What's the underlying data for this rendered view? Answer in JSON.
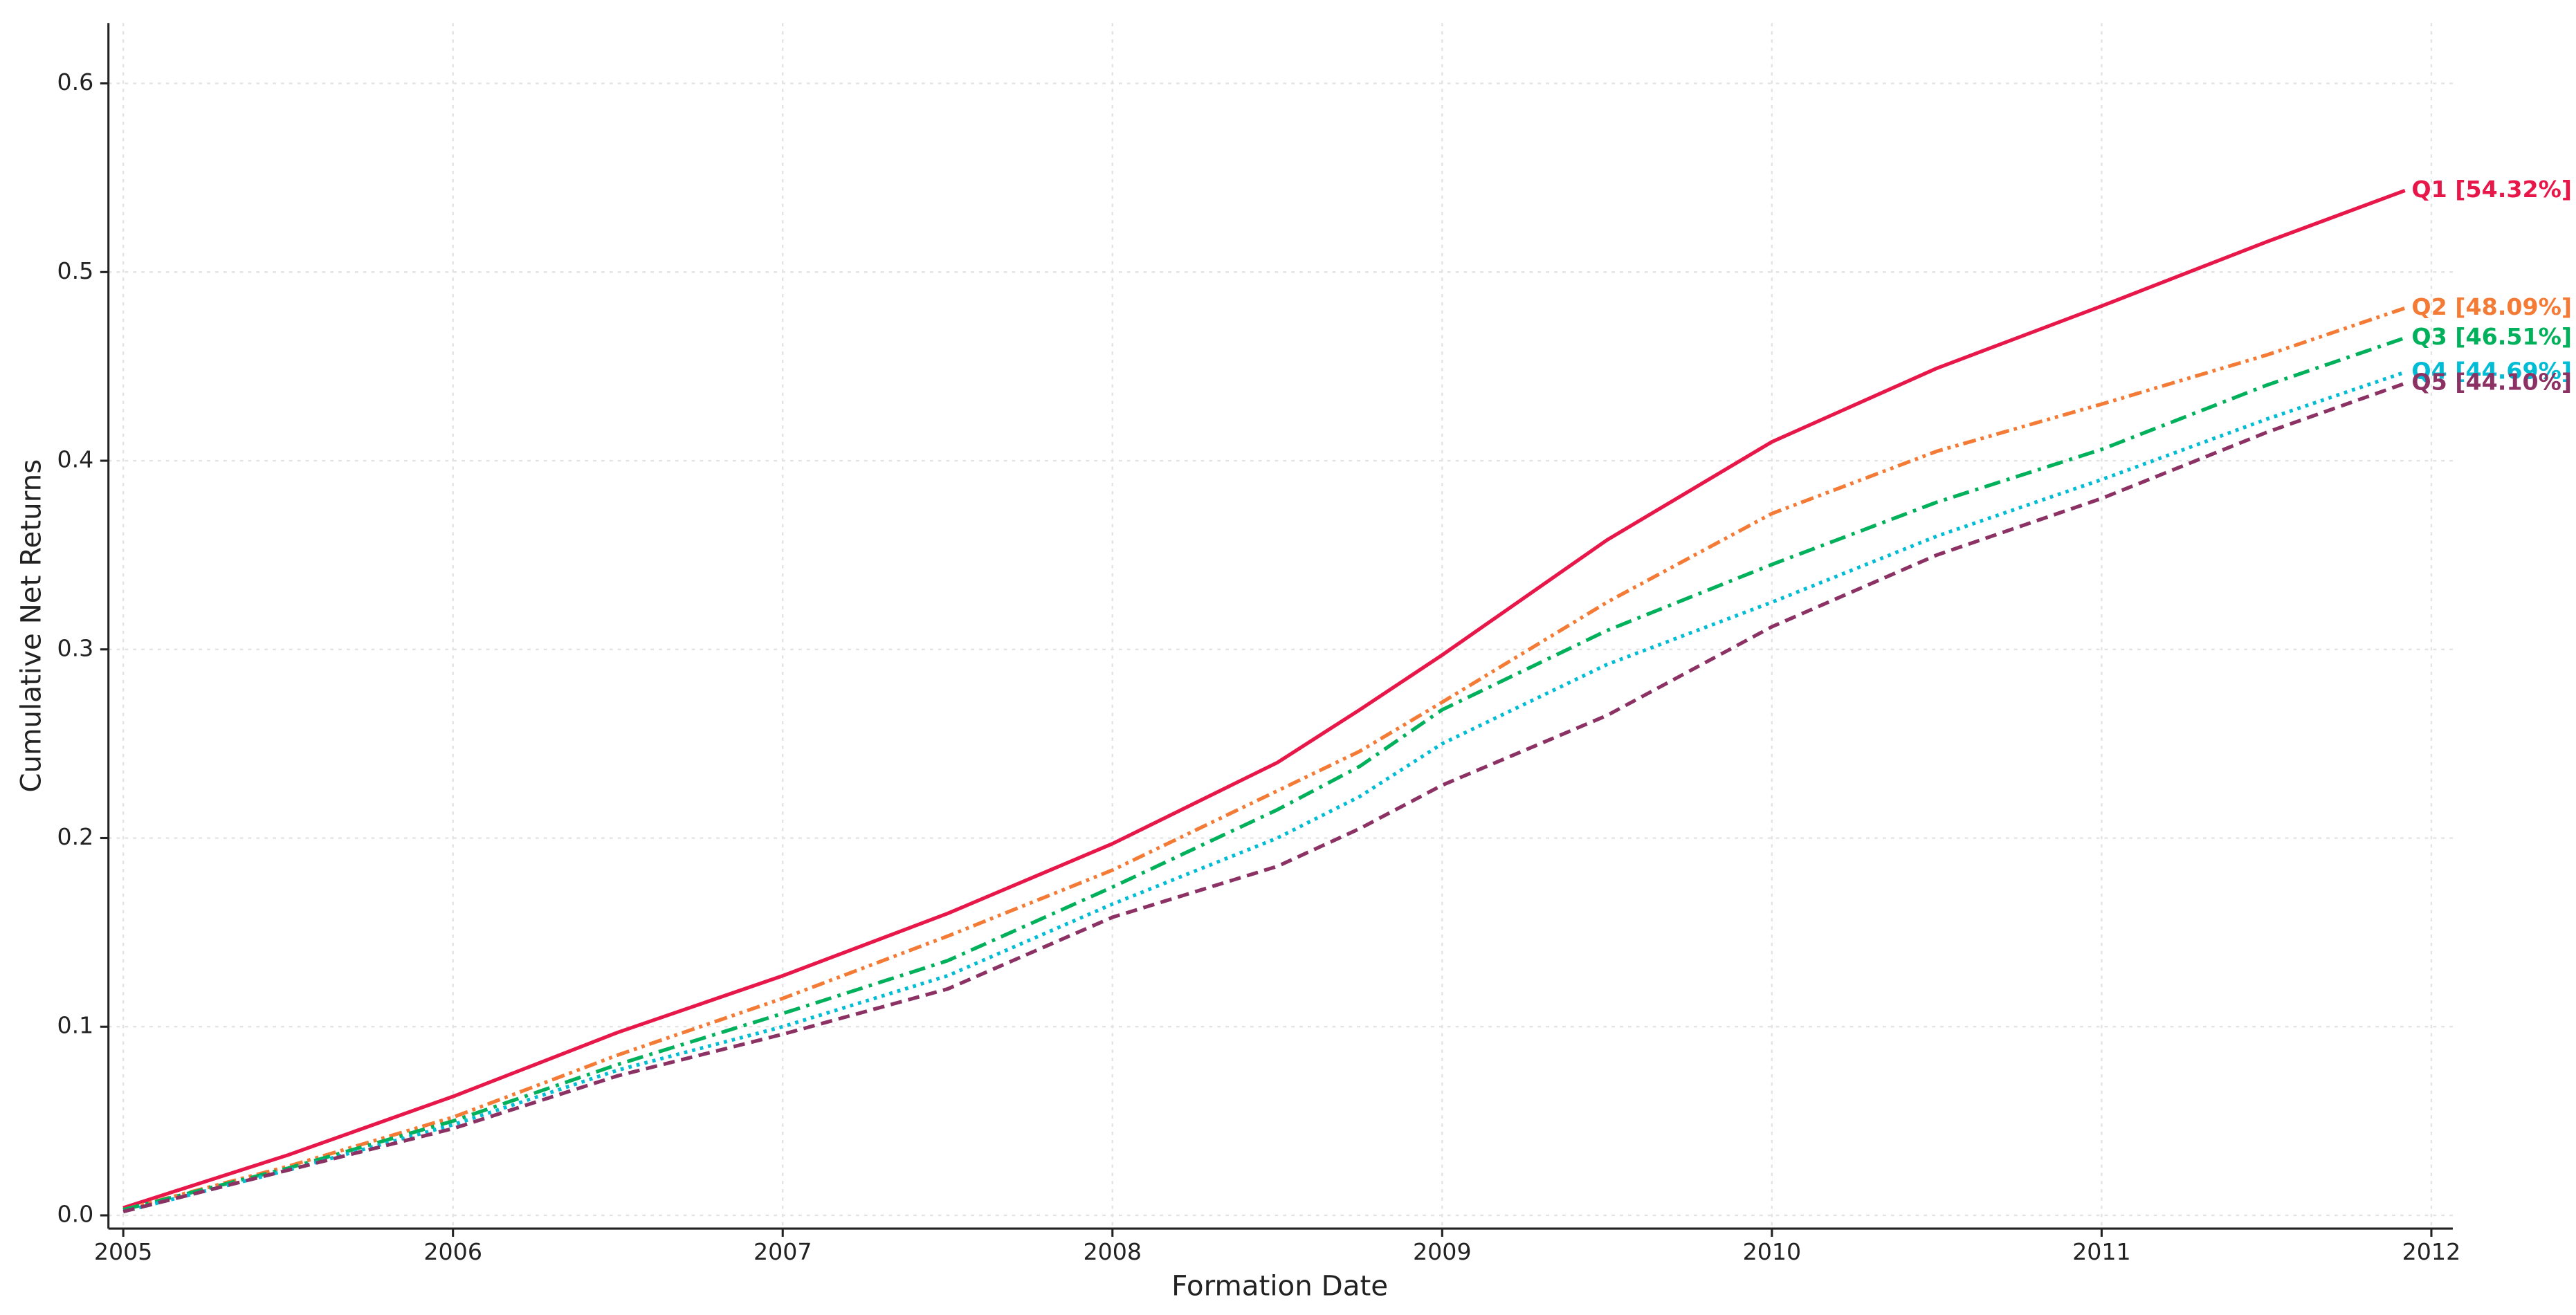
{
  "chart_data": {
    "type": "line",
    "x_label": "Formation Date",
    "y_label": "Cumulative Net Returns",
    "x": [
      2005,
      2005.5,
      2006,
      2006.5,
      2007,
      2007.5,
      2008,
      2008.5,
      2008.75,
      2009,
      2009.5,
      2010,
      2010.5,
      2011,
      2011.5,
      2011.92
    ],
    "series": [
      {
        "name": "Q1 [54.32%]",
        "color": "#e8174a",
        "dash": "solid",
        "values": [
          0.004,
          0.032,
          0.063,
          0.097,
          0.127,
          0.16,
          0.197,
          0.24,
          0.268,
          0.297,
          0.358,
          0.41,
          0.449,
          0.482,
          0.516,
          0.5432
        ]
      },
      {
        "name": "Q2 [48.09%]",
        "color": "#f47b36",
        "dash": "dashdotdot",
        "values": [
          0.003,
          0.026,
          0.052,
          0.085,
          0.115,
          0.148,
          0.183,
          0.225,
          0.246,
          0.272,
          0.325,
          0.372,
          0.405,
          0.43,
          0.456,
          0.4809
        ]
      },
      {
        "name": "Q3 [46.51%]",
        "color": "#00b05a",
        "dash": "dashdot",
        "values": [
          0.003,
          0.025,
          0.05,
          0.08,
          0.107,
          0.135,
          0.174,
          0.215,
          0.238,
          0.268,
          0.31,
          0.345,
          0.378,
          0.406,
          0.44,
          0.4651
        ]
      },
      {
        "name": "Q4 [44.69%]",
        "color": "#00bcd4",
        "dash": "dotted",
        "values": [
          0.002,
          0.024,
          0.048,
          0.077,
          0.1,
          0.127,
          0.165,
          0.2,
          0.222,
          0.25,
          0.292,
          0.325,
          0.36,
          0.39,
          0.422,
          0.4469
        ]
      },
      {
        "name": "Q5 [44.10%]",
        "color": "#8b3163",
        "dash": "dashed",
        "values": [
          0.002,
          0.024,
          0.046,
          0.074,
          0.096,
          0.12,
          0.158,
          0.185,
          0.205,
          0.228,
          0.265,
          0.312,
          0.35,
          0.38,
          0.415,
          0.441
        ]
      }
    ],
    "xlim": [
      2004.955,
      2012.065
    ],
    "xticks": [
      2005,
      2006,
      2007,
      2008,
      2009,
      2010,
      2011,
      2012
    ],
    "ylim": [
      -0.007,
      0.632
    ],
    "yticks": [
      {
        "value": 0,
        "label": "0.0"
      },
      0.1,
      0.2,
      0.3,
      0.4,
      0.5,
      0.6
    ],
    "grid": true
  }
}
